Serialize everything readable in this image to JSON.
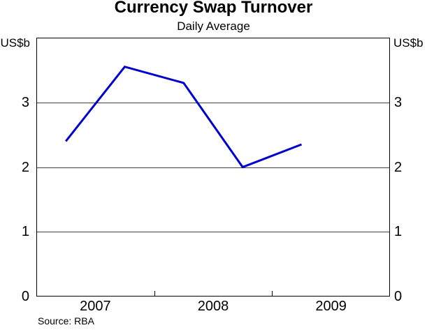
{
  "chart_data": {
    "type": "line",
    "title": "Currency Swap Turnover",
    "subtitle": "Daily Average",
    "y_unit_left": "US$b",
    "y_unit_right": "US$b",
    "source_note": "Source: RBA",
    "series": [
      {
        "name": "currency-swap-turnover-daily-average",
        "x": [
          2007.25,
          2007.75,
          2008.25,
          2008.75,
          2009.25
        ],
        "values": [
          2.4,
          3.55,
          3.3,
          2.0,
          2.35
        ],
        "color": "#0000CC"
      }
    ],
    "xlim": [
      2007,
      2010
    ],
    "ylim": [
      0,
      4
    ],
    "yticks": [
      0,
      1,
      2,
      3
    ],
    "xticks": [
      {
        "label": "2007",
        "pos": 2007.5
      },
      {
        "label": "2008",
        "pos": 2008.5
      },
      {
        "label": "2009",
        "pos": 2009.5
      }
    ],
    "x_boundary_ticks": [
      2008,
      2009
    ],
    "gridline_values": [
      1,
      2,
      3
    ],
    "legend_position": "none",
    "grid_on": true,
    "grid_color": "#404040",
    "axis_color": "#000000",
    "background_color": "#FFFFFF"
  }
}
